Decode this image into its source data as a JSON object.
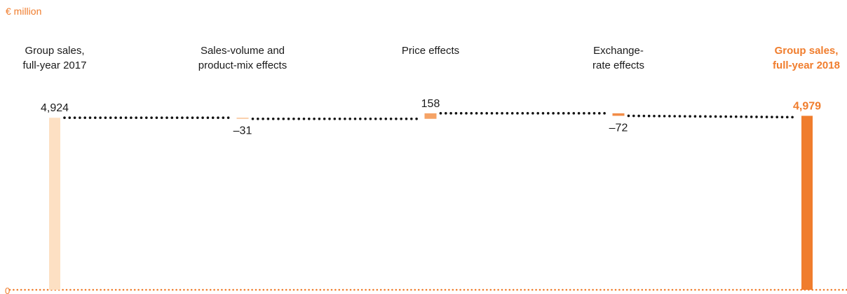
{
  "chart_data": {
    "type": "waterfall",
    "unit": "€ million",
    "categories": [
      "Group sales,\nfull-year 2017",
      "Sales-volume and\nproduct-mix effects",
      "Price effects",
      "Exchange-\nrate effects",
      "Group sales,\nfull-year 2018"
    ],
    "values": [
      4924,
      -31,
      158,
      -72,
      4979
    ],
    "value_labels": [
      "4,924",
      "–31",
      "158",
      "–72",
      "4,979"
    ],
    "bar_kinds": [
      "total",
      "delta",
      "delta",
      "delta",
      "total"
    ],
    "baseline_label": "0",
    "colors": {
      "start_total": "#fde0c3",
      "negative_small": "#f8c496",
      "positive": "#f5a366",
      "negative": "#f28c47",
      "end_total": "#f07d2d",
      "connector": "#111111",
      "baseline": "#f07d2d"
    }
  }
}
